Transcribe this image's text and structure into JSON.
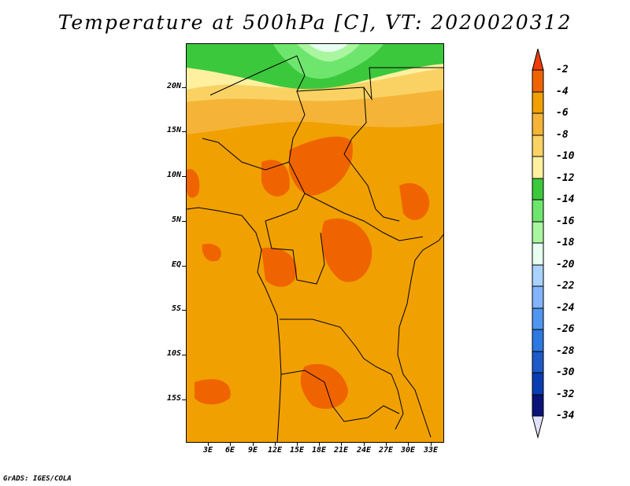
{
  "title": "Temperature at 500hPa [C], VT: 2020020312",
  "credit": "GrADS: IGES/COLA",
  "map": {
    "lat_labels": [
      "20N",
      "15N",
      "10N",
      "5N",
      "EQ",
      "5S",
      "10S",
      "15S"
    ],
    "lon_labels": [
      "3E",
      "6E",
      "9E",
      "12E",
      "15E",
      "18E",
      "21E",
      "24E",
      "27E",
      "30E",
      "33E"
    ]
  },
  "colorbar": {
    "labels": [
      "-2",
      "-4",
      "-6",
      "-8",
      "-10",
      "-12",
      "-14",
      "-16",
      "-18",
      "-20",
      "-22",
      "-24",
      "-26",
      "-28",
      "-30",
      "-32",
      "-34"
    ],
    "colors": [
      "#f03c00",
      "#f06400",
      "#f0a000",
      "#f5b437",
      "#fad264",
      "#fff0a0",
      "#3cc83c",
      "#6ee66e",
      "#aaf5a0",
      "#e6fff0",
      "#aad2ff",
      "#82b4ff",
      "#5096f0",
      "#2d78e1",
      "#1e5ac8",
      "#0a3cb4",
      "#0a1478",
      "#e1e1ff"
    ]
  }
}
